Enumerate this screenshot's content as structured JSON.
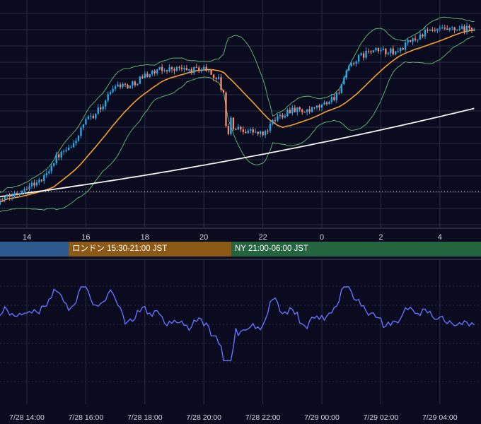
{
  "colors": {
    "background": "#0a0b1e",
    "grid": "#2a2d45",
    "candle_up": "#29a8e8",
    "candle_down": "#f08a72",
    "bollinger": "#5fae6f",
    "ma_short": "#f5a02c",
    "ma_long": "#f2f2f2",
    "oscillator": "#6670ff",
    "axis_text": "#d8d8e0"
  },
  "price_axis_ticks": [
    "14",
    "16",
    "18",
    "20",
    "22",
    "0",
    "2",
    "4"
  ],
  "sessions": [
    {
      "id": "tokyo",
      "label": "",
      "color": "#2c5a8c"
    },
    {
      "id": "london",
      "label": "ロンドン 15:30-21:00 JST",
      "color": "#8a5a16"
    },
    {
      "id": "ny",
      "label": "NY 21:00-06:00 JST",
      "color": "#24653f"
    }
  ],
  "oscillator_axis_ticks": [
    "7/28 14:00",
    "7/28 16:00",
    "7/28 18:00",
    "7/28 20:00",
    "7/28 22:00",
    "7/29 00:00",
    "7/29 02:00",
    "7/29 04:00"
  ],
  "chart_data": [
    {
      "type": "candlestick",
      "title": "",
      "x_ticks": [
        "14",
        "16",
        "18",
        "20",
        "22",
        "0",
        "2",
        "4"
      ],
      "grid": true,
      "price_units": "relative (no price scale printed)",
      "key_hours": [
        13.0,
        13.5,
        14.0,
        14.5,
        15.0,
        15.5,
        16.0,
        16.5,
        17.0,
        17.5,
        18.0,
        18.5,
        19.0,
        19.5,
        20.0,
        20.5,
        21.0,
        21.5,
        22.0,
        22.5,
        23.0,
        23.5,
        24.0,
        24.5,
        25.0,
        25.5,
        26.0,
        26.5,
        27.0,
        27.5,
        28.0,
        28.5,
        29.2
      ],
      "key_close": [
        0,
        2.5,
        7,
        9.5,
        20,
        24,
        36,
        42,
        53,
        52,
        57,
        59,
        60,
        59,
        60,
        55,
        33,
        32,
        30,
        38,
        42,
        40,
        43,
        48,
        62,
        67,
        68,
        67,
        72,
        76,
        77,
        77,
        78
      ],
      "series": [
        {
          "name": "",
          "kind": "candles"
        },
        {
          "name": "",
          "kind": "ma_short"
        },
        {
          "name": "",
          "kind": "ma_long"
        },
        {
          "name": "",
          "kind": "bollinger_bands"
        }
      ]
    },
    {
      "type": "line",
      "title": "",
      "x_ticks": [
        "7/28 14:00",
        "7/28 16:00",
        "7/28 18:00",
        "7/28 20:00",
        "7/28 22:00",
        "7/29 00:00",
        "7/29 02:00",
        "7/29 04:00"
      ],
      "grid": true,
      "series": [
        {
          "name": "",
          "kind": "oscillator"
        }
      ]
    }
  ]
}
